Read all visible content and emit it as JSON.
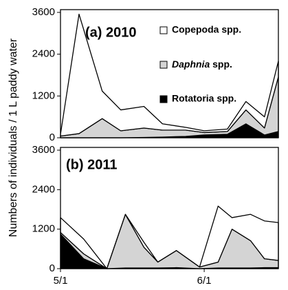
{
  "chart_data": [
    {
      "type": "stacked-area",
      "title": "(a) 2010",
      "ylabel": "Numbers of individuals / 1 L paddy water",
      "x": [
        0,
        4,
        9,
        13,
        18,
        22,
        27,
        31,
        36,
        40,
        44,
        47
      ],
      "xlim": [
        0,
        47
      ],
      "ylim": [
        0,
        3600
      ],
      "yticks": [
        0,
        1200,
        2400,
        3600
      ],
      "legend": "upper right",
      "series": [
        {
          "name": "Rotatoria spp.",
          "color": "#000000",
          "values": [
            0,
            0,
            0,
            0,
            10,
            20,
            40,
            80,
            100,
            400,
            80,
            180
          ]
        },
        {
          "name": "Daphnia spp.",
          "color": "#d4d4d4",
          "values": [
            50,
            120,
            550,
            200,
            270,
            200,
            180,
            70,
            80,
            400,
            200,
            1570
          ]
        },
        {
          "name": "Copepoda spp.",
          "color": "#ffffff",
          "values": [
            50,
            3430,
            790,
            600,
            620,
            180,
            80,
            50,
            70,
            240,
            320,
            450
          ]
        }
      ]
    },
    {
      "type": "stacked-area",
      "title": "(b) 2011",
      "x": [
        0,
        5,
        10,
        14,
        18,
        21,
        25,
        30,
        34,
        37,
        41,
        44,
        47
      ],
      "xlim": [
        0,
        47
      ],
      "xticks": [
        {
          "value": 0,
          "label": "5/1"
        },
        {
          "value": 31,
          "label": "6/1"
        }
      ],
      "ylim": [
        0,
        3600
      ],
      "yticks": [
        0,
        1200,
        2400,
        3600
      ],
      "series": [
        {
          "color": "#000000",
          "values": [
            1050,
            300,
            0,
            20,
            20,
            20,
            30,
            0,
            20,
            20,
            20,
            30,
            30
          ]
        },
        {
          "color": "#d4d4d4",
          "values": [
            50,
            150,
            0,
            1630,
            630,
            180,
            520,
            50,
            180,
            1180,
            830,
            270,
            220
          ]
        },
        {
          "color": "#ffffff",
          "values": [
            450,
            450,
            0,
            0,
            150,
            0,
            0,
            0,
            1700,
            350,
            800,
            1150,
            1150
          ]
        }
      ]
    }
  ]
}
